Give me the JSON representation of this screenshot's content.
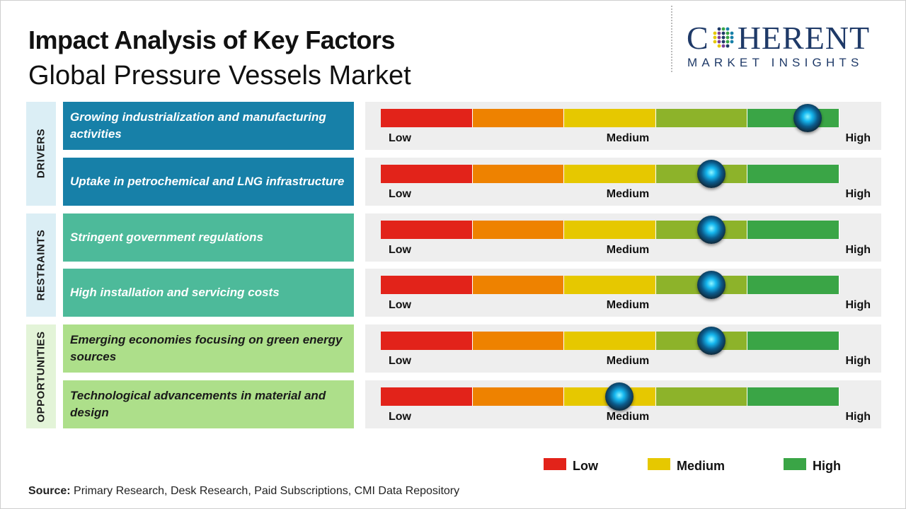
{
  "header": {
    "title": "Impact Analysis of Key Factors",
    "subtitle": "Global Pressure Vessels Market"
  },
  "logo": {
    "brand_left": "C",
    "brand_right": "HERENT",
    "tagline": "MARKET INSIGHTS"
  },
  "chart_data": {
    "type": "impact-gauge",
    "scale_labels": [
      "Low",
      "Medium",
      "High"
    ],
    "scale_colors": [
      "#e2231a",
      "#ee8200",
      "#e6c800",
      "#8db32a",
      "#3aa546"
    ],
    "categories": [
      {
        "name": "DRIVERS",
        "color": "#dbeef5"
      },
      {
        "name": "RESTRAINTS",
        "color": "#dbeef5"
      },
      {
        "name": "OPPORTUNITIES",
        "color": "#e3f4d8"
      }
    ],
    "factors": [
      {
        "category": "DRIVERS",
        "text": "Growing industrialization  and manufacturing  activities",
        "impact": 0.93,
        "color": "#1780a8",
        "text_color": "#ffffff"
      },
      {
        "category": "DRIVERS",
        "text": "Uptake  in petrochemical  and LNG infrastructure",
        "impact": 0.72,
        "color": "#1780a8",
        "text_color": "#ffffff"
      },
      {
        "category": "RESTRAINTS",
        "text": "Stringent  government  regulations",
        "impact": 0.72,
        "color": "#4dba9a",
        "text_color": "#ffffff"
      },
      {
        "category": "RESTRAINTS",
        "text": "High  installation  and servicing  costs",
        "impact": 0.72,
        "color": "#4dba9a",
        "text_color": "#ffffff"
      },
      {
        "category": "OPPORTUNITIES",
        "text": "Emerging  economies  focusing  on green energy  sources",
        "impact": 0.72,
        "color": "#addf8a",
        "text_color": "#1a1a1a"
      },
      {
        "category": "OPPORTUNITIES",
        "text": "Technological  advancements  in material and design",
        "impact": 0.52,
        "color": "#addf8a",
        "text_color": "#1a1a1a"
      }
    ],
    "legend": [
      {
        "label": "Low",
        "color": "#e2231a"
      },
      {
        "label": "Medium",
        "color": "#e6c800"
      },
      {
        "label": "High",
        "color": "#3aa546"
      }
    ]
  },
  "footer": {
    "source_label": "Source:",
    "source_text": " Primary Research, Desk Research, Paid Subscriptions, CMI Data Repository"
  }
}
